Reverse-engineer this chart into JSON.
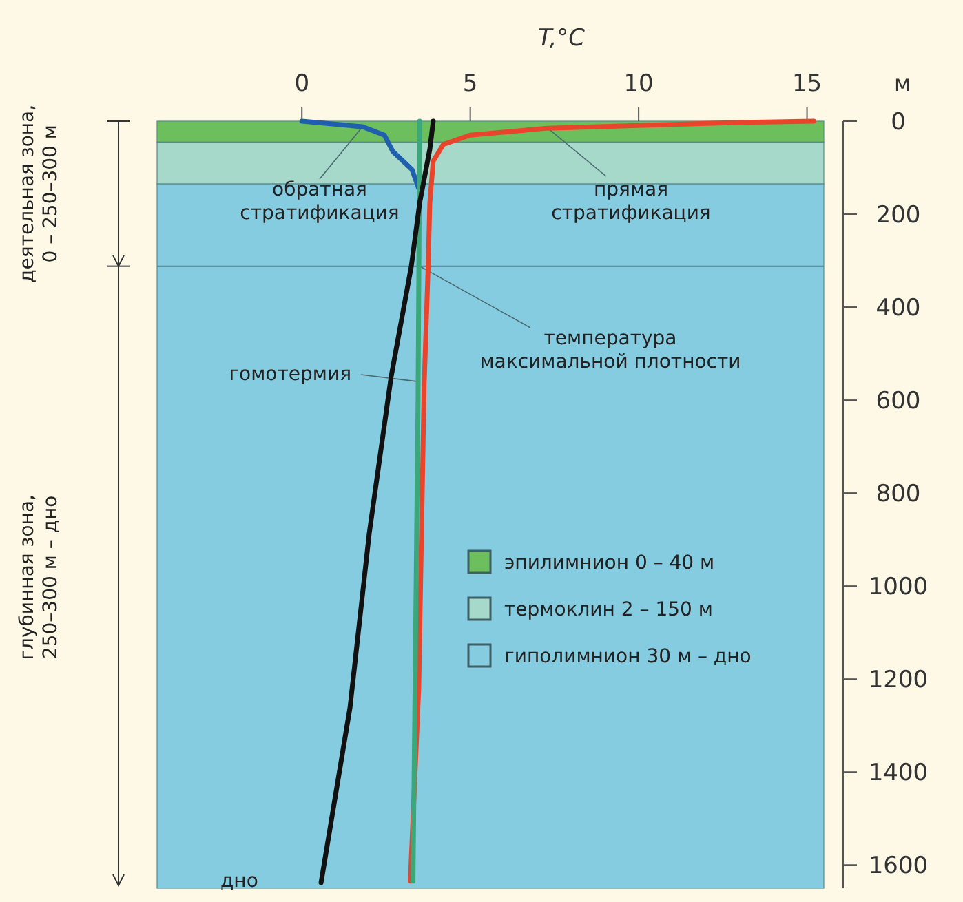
{
  "chart_data": {
    "type": "line",
    "xlabel": "T,°C",
    "ylabel": "м",
    "xlim": [
      -4.3,
      15.5
    ],
    "xticks": [
      0,
      5,
      10,
      15
    ],
    "ylim": [
      1650,
      0
    ],
    "yticks": [
      0,
      200,
      400,
      600,
      800,
      1000,
      1200,
      1400,
      1600
    ],
    "bands": [
      {
        "axis": "y",
        "from": 0,
        "to": 45,
        "label": "эпилимнион 0 – 40 м",
        "color": "#6cbf5c"
      },
      {
        "axis": "y",
        "from": 45,
        "to": 135,
        "label": "термоклин 2 – 150 м",
        "color": "#a6d9c9"
      },
      {
        "axis": "y",
        "from": 135,
        "to": 1650,
        "label": "гиполимнион 30 м – дно",
        "color": "#86cce0"
      }
    ],
    "ref_lines": [
      {
        "axis": "y",
        "value": 312,
        "color": "#4a7f8f"
      }
    ],
    "series": [
      {
        "color": "#1f5fae",
        "x": [
          0,
          1.8,
          2.45,
          2.7,
          3.27,
          3.47
        ],
        "values": [
          0,
          12,
          30,
          65,
          104,
          145
        ]
      },
      {
        "color": "#e8452c",
        "x": [
          15.2,
          12.9,
          7.3,
          5,
          4.2,
          3.9,
          3.8,
          3.75,
          3.63,
          3.47,
          3.22
        ],
        "values": [
          0,
          3,
          15,
          30,
          50,
          86,
          175,
          312,
          570,
          1220,
          1635
        ]
      },
      {
        "color": "#3aa87a",
        "x": [
          3.5,
          3.45,
          3.3
        ],
        "values": [
          0,
          600,
          1635
        ]
      },
      {
        "color": "#111111",
        "x": [
          3.9,
          3.8,
          3.5,
          3.25,
          2.65,
          2.0,
          1.43,
          0.57
        ],
        "values": [
          0,
          60,
          175,
          312,
          550,
          887,
          1261,
          1638
        ]
      }
    ],
    "legend": "right",
    "line_style": "solid",
    "annotations": [
      {
        "text": "обратная\nстратификация",
        "x": 1.8,
        "y": 12
      },
      {
        "text": "прямая\nстратификация",
        "x": 7.3,
        "y": 15
      },
      {
        "text": "температура\nмаксимальной плотности",
        "x": 3.5,
        "y": 312
      },
      {
        "text": "гомотермия",
        "x": 3.45,
        "y": 560
      },
      "дно",
      "деятельная зона,\n0 – 250–300 м",
      "глубинная зона,\n250–300 м – дно"
    ]
  }
}
